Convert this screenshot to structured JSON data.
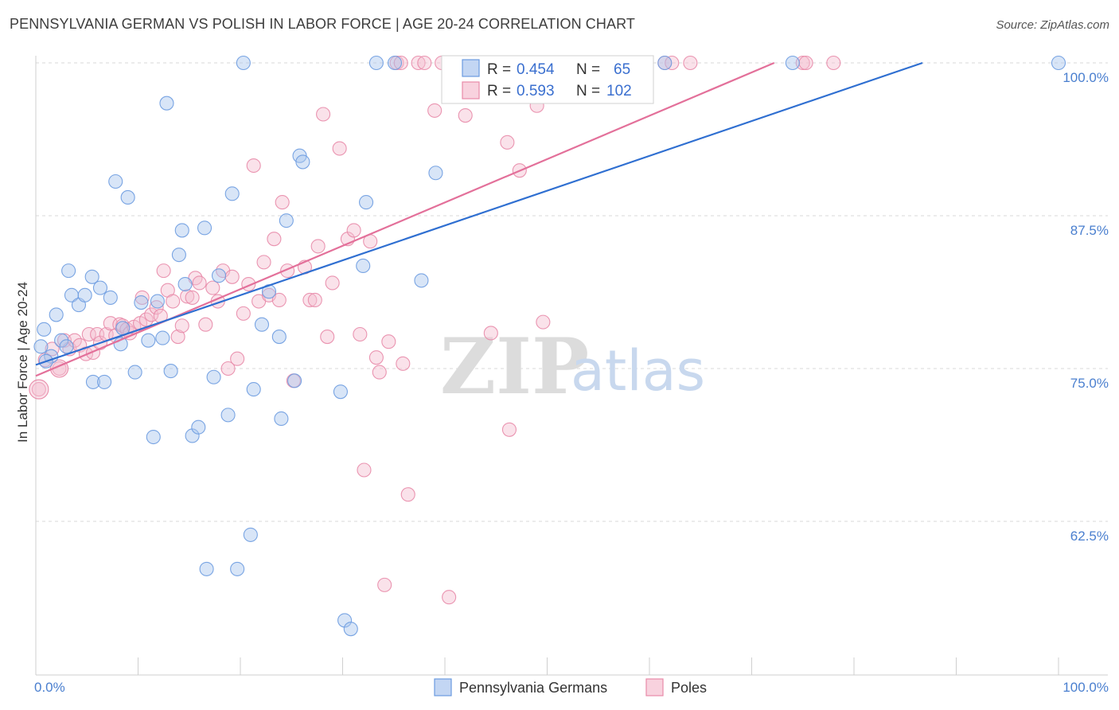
{
  "title": "PENNSYLVANIA GERMAN VS POLISH IN LABOR FORCE | AGE 20-24 CORRELATION CHART",
  "source": "Source: ZipAtlas.com",
  "watermark": {
    "zip": "ZIP",
    "atlas": "atlas"
  },
  "colors": {
    "blue": "#6c9be0",
    "blue_fill": "#a9c5ee",
    "blue_line": "#2f6fd1",
    "pink": "#e88aa8",
    "pink_fill": "#f5bfd0",
    "pink_line": "#e3709a",
    "grid": "#d9d9d9",
    "tick_text": "#4a7fcf"
  },
  "chart_data": {
    "type": "scatter",
    "title": "PENNSYLVANIA GERMAN VS POLISH IN LABOR FORCE | AGE 20-24 CORRELATION CHART",
    "xlabel": "",
    "ylabel": "In Labor Force | Age 20-24",
    "xlim": [
      0,
      100
    ],
    "ylim": [
      50,
      100
    ],
    "x_tick_labels": [
      "0.0%",
      "100.0%"
    ],
    "y_ticks": [
      62.5,
      75.0,
      87.5,
      100.0
    ],
    "y_tick_labels": [
      "62.5%",
      "75.0%",
      "87.5%",
      "100.0%"
    ],
    "legend": [
      {
        "name": "Pennsylvania Germans",
        "R_label": "R =",
        "R": "0.454",
        "N_label": "N =",
        "N": "65"
      },
      {
        "name": "Poles",
        "R_label": "R =",
        "R": "0.593",
        "N_label": "N =",
        "N": "102"
      }
    ],
    "series": [
      {
        "name": "Pennsylvania Germans",
        "trend": {
          "x0": 0,
          "y0": 75.3,
          "x1": 86.7,
          "y1": 100
        },
        "points": [
          [
            0.5,
            76.8
          ],
          [
            0.8,
            78.2
          ],
          [
            1.5,
            76.0
          ],
          [
            2.0,
            79.4
          ],
          [
            2.5,
            77.3
          ],
          [
            3.0,
            76.8
          ],
          [
            3.2,
            83.0
          ],
          [
            3.5,
            81.0
          ],
          [
            4.2,
            80.2
          ],
          [
            4.8,
            81.0
          ],
          [
            5.5,
            82.5
          ],
          [
            5.6,
            73.9
          ],
          [
            6.3,
            81.6
          ],
          [
            6.7,
            73.9
          ],
          [
            7.3,
            80.8
          ],
          [
            7.8,
            90.3
          ],
          [
            8.3,
            77.0
          ],
          [
            8.5,
            78.3
          ],
          [
            9.0,
            89.0
          ],
          [
            9.7,
            74.7
          ],
          [
            10.3,
            80.4
          ],
          [
            11.0,
            77.3
          ],
          [
            11.5,
            69.4
          ],
          [
            11.9,
            80.5
          ],
          [
            12.4,
            77.5
          ],
          [
            12.8,
            96.7
          ],
          [
            13.2,
            74.8
          ],
          [
            14.0,
            84.3
          ],
          [
            14.3,
            86.3
          ],
          [
            14.6,
            81.9
          ],
          [
            15.3,
            69.5
          ],
          [
            15.9,
            70.2
          ],
          [
            16.5,
            86.5
          ],
          [
            16.7,
            58.6
          ],
          [
            17.4,
            74.3
          ],
          [
            17.9,
            82.6
          ],
          [
            18.8,
            71.2
          ],
          [
            19.2,
            89.3
          ],
          [
            19.7,
            58.6
          ],
          [
            20.3,
            100.0
          ],
          [
            21.0,
            61.4
          ],
          [
            21.3,
            73.3
          ],
          [
            22.1,
            78.6
          ],
          [
            22.8,
            81.3
          ],
          [
            23.8,
            77.6
          ],
          [
            24.0,
            70.9
          ],
          [
            24.5,
            87.1
          ],
          [
            25.3,
            74.0
          ],
          [
            25.8,
            92.4
          ],
          [
            26.1,
            91.9
          ],
          [
            29.8,
            73.1
          ],
          [
            30.2,
            54.4
          ],
          [
            30.8,
            53.7
          ],
          [
            32.0,
            83.4
          ],
          [
            32.3,
            88.6
          ],
          [
            33.3,
            100.0
          ],
          [
            35.1,
            100.0
          ],
          [
            37.7,
            82.2
          ],
          [
            39.1,
            91.0
          ],
          [
            42.5,
            100.0
          ],
          [
            49.3,
            100.0
          ],
          [
            61.5,
            100.0
          ],
          [
            74.0,
            100.0
          ],
          [
            100.0,
            100.0
          ],
          [
            1.0,
            75.6
          ]
        ]
      },
      {
        "name": "Poles",
        "trend": {
          "x0": 0,
          "y0": 74.4,
          "x1": 72.2,
          "y1": 100
        },
        "points": [
          [
            0.3,
            73.3
          ],
          [
            0.9,
            75.7
          ],
          [
            1.6,
            76.6
          ],
          [
            2.3,
            75.0
          ],
          [
            2.8,
            77.3
          ],
          [
            3.3,
            76.6
          ],
          [
            3.8,
            77.3
          ],
          [
            4.3,
            76.9
          ],
          [
            4.9,
            76.2
          ],
          [
            5.2,
            77.8
          ],
          [
            5.6,
            76.3
          ],
          [
            6.0,
            77.8
          ],
          [
            6.3,
            77.1
          ],
          [
            6.9,
            77.8
          ],
          [
            7.3,
            78.7
          ],
          [
            7.8,
            77.7
          ],
          [
            8.2,
            78.6
          ],
          [
            8.5,
            78.5
          ],
          [
            8.9,
            78.2
          ],
          [
            9.2,
            77.9
          ],
          [
            9.6,
            78.4
          ],
          [
            10.2,
            78.7
          ],
          [
            10.4,
            80.8
          ],
          [
            10.8,
            79.0
          ],
          [
            11.3,
            79.4
          ],
          [
            11.8,
            80.0
          ],
          [
            12.2,
            79.3
          ],
          [
            12.5,
            83.0
          ],
          [
            12.9,
            81.4
          ],
          [
            13.4,
            80.5
          ],
          [
            13.9,
            77.6
          ],
          [
            14.3,
            78.5
          ],
          [
            14.8,
            80.9
          ],
          [
            15.3,
            80.8
          ],
          [
            15.6,
            82.4
          ],
          [
            16.0,
            82.0
          ],
          [
            16.6,
            78.6
          ],
          [
            17.3,
            81.6
          ],
          [
            17.8,
            80.5
          ],
          [
            18.3,
            83.0
          ],
          [
            18.8,
            75.0
          ],
          [
            19.2,
            82.5
          ],
          [
            19.7,
            75.8
          ],
          [
            20.3,
            79.5
          ],
          [
            20.8,
            81.9
          ],
          [
            21.3,
            91.6
          ],
          [
            21.8,
            80.5
          ],
          [
            22.3,
            83.7
          ],
          [
            22.8,
            81.0
          ],
          [
            23.3,
            85.6
          ],
          [
            23.8,
            80.6
          ],
          [
            24.1,
            88.6
          ],
          [
            24.6,
            83.0
          ],
          [
            25.2,
            74.0
          ],
          [
            26.3,
            83.3
          ],
          [
            26.8,
            80.6
          ],
          [
            27.3,
            80.6
          ],
          [
            27.6,
            85.0
          ],
          [
            28.1,
            95.8
          ],
          [
            28.5,
            77.6
          ],
          [
            29.0,
            82.0
          ],
          [
            29.7,
            93.0
          ],
          [
            30.5,
            85.6
          ],
          [
            31.1,
            86.3
          ],
          [
            31.7,
            77.8
          ],
          [
            32.1,
            66.7
          ],
          [
            32.7,
            85.4
          ],
          [
            33.3,
            75.9
          ],
          [
            33.6,
            74.7
          ],
          [
            34.1,
            57.3
          ],
          [
            34.5,
            77.2
          ],
          [
            35.3,
            100.0
          ],
          [
            35.7,
            100.0
          ],
          [
            35.9,
            75.4
          ],
          [
            36.4,
            64.7
          ],
          [
            37.4,
            100.0
          ],
          [
            38.0,
            100.0
          ],
          [
            39.0,
            96.1
          ],
          [
            39.7,
            100.0
          ],
          [
            40.4,
            56.3
          ],
          [
            41.1,
            100.0
          ],
          [
            42.0,
            95.7
          ],
          [
            43.2,
            100.0
          ],
          [
            44.5,
            77.9
          ],
          [
            45.8,
            100.0
          ],
          [
            46.1,
            93.5
          ],
          [
            46.3,
            70.0
          ],
          [
            47.3,
            91.2
          ],
          [
            48.0,
            100.0
          ],
          [
            49.0,
            96.5
          ],
          [
            49.6,
            78.8
          ],
          [
            51.4,
            100.0
          ],
          [
            52.1,
            100.0
          ],
          [
            54.3,
            100.0
          ],
          [
            55.3,
            100.0
          ],
          [
            56.3,
            100.0
          ],
          [
            61.5,
            100.0
          ],
          [
            62.2,
            100.0
          ],
          [
            64.0,
            100.0
          ],
          [
            75.0,
            100.0
          ],
          [
            75.3,
            100.0
          ],
          [
            78.0,
            100.0
          ]
        ]
      }
    ]
  }
}
